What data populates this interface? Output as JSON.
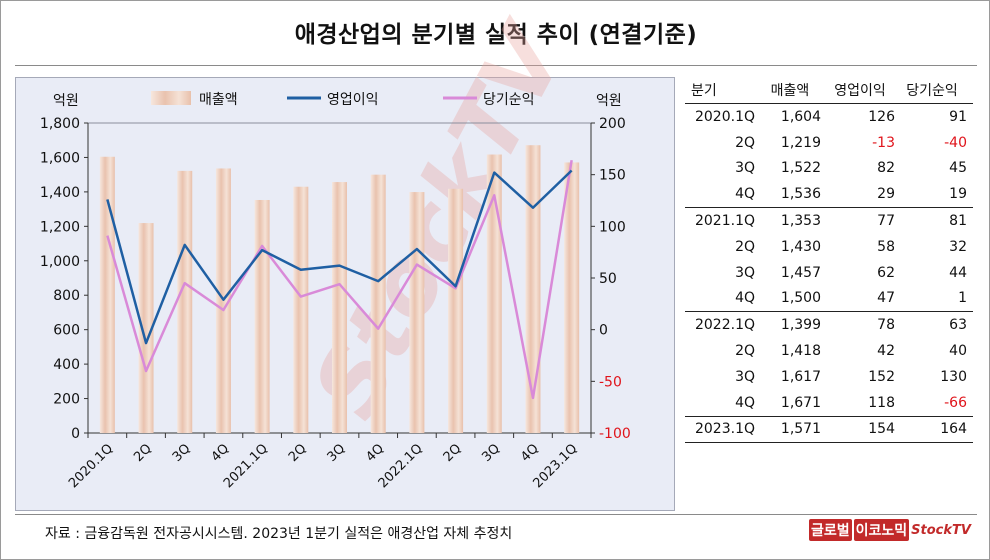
{
  "title": "애경산업의 분기별 실적 추이 (연결기준)",
  "source": "자료 : 금융감독원 전자공시시스템. 2023년 1분기 실적은 애경산업 자체 추정치",
  "logo": {
    "part1": "글로벌",
    "part2": "이코노믹",
    "part3": "StockTV"
  },
  "watermark": "StockTV",
  "colors": {
    "bar": "#f1d8c9",
    "operating": "#1f5fa3",
    "net": "#d98ad8",
    "negative": "#e0141b",
    "plot_bg": "#e9ecf6"
  },
  "chart_data": {
    "type": "bar+line",
    "title": "애경산업의 분기별 실적 추이 (연결기준)",
    "left_axis_unit": "억원",
    "right_axis_unit": "억원",
    "categories": [
      "2020.1Q",
      "2Q",
      "3Q",
      "4Q",
      "2021.1Q",
      "2Q",
      "3Q",
      "4Q",
      "2022.1Q",
      "2Q",
      "3Q",
      "4Q",
      "2023.1Q"
    ],
    "series": [
      {
        "name": "매출액",
        "type": "bar",
        "axis": "left",
        "values": [
          1604,
          1219,
          1522,
          1536,
          1353,
          1430,
          1457,
          1500,
          1399,
          1418,
          1617,
          1671,
          1571
        ]
      },
      {
        "name": "영업이익",
        "type": "line",
        "axis": "right",
        "values": [
          126,
          -13,
          82,
          29,
          77,
          58,
          62,
          47,
          78,
          42,
          152,
          118,
          154
        ]
      },
      {
        "name": "당기순익",
        "type": "line",
        "axis": "right",
        "values": [
          91,
          -40,
          45,
          19,
          81,
          32,
          44,
          1,
          63,
          40,
          130,
          -66,
          164
        ]
      }
    ],
    "left_ylim": [
      0,
      1800
    ],
    "left_ticks": [
      "0",
      "200",
      "400",
      "600",
      "800",
      "1,000",
      "1,200",
      "1,400",
      "1,600",
      "1,800"
    ],
    "right_ylim": [
      -100,
      200
    ],
    "right_ticks": [
      "-100",
      "-50",
      "0",
      "50",
      "100",
      "150",
      "200"
    ],
    "legend_placement": "top",
    "grid": false
  },
  "table": {
    "headers": [
      "분기",
      "매출액",
      "영업이익",
      "당기순익"
    ],
    "groups": [
      [
        [
          "2020.1Q",
          "1,604",
          "126",
          "91"
        ],
        [
          "2Q",
          "1,219",
          "-13",
          "-40"
        ],
        [
          "3Q",
          "1,522",
          "82",
          "45"
        ],
        [
          "4Q",
          "1,536",
          "29",
          "19"
        ]
      ],
      [
        [
          "2021.1Q",
          "1,353",
          "77",
          "81"
        ],
        [
          "2Q",
          "1,430",
          "58",
          "32"
        ],
        [
          "3Q",
          "1,457",
          "62",
          "44"
        ],
        [
          "4Q",
          "1,500",
          "47",
          "1"
        ]
      ],
      [
        [
          "2022.1Q",
          "1,399",
          "78",
          "63"
        ],
        [
          "2Q",
          "1,418",
          "42",
          "40"
        ],
        [
          "3Q",
          "1,617",
          "152",
          "130"
        ],
        [
          "4Q",
          "1,671",
          "118",
          "-66"
        ]
      ],
      [
        [
          "2023.1Q",
          "1,571",
          "154",
          "164"
        ]
      ]
    ]
  }
}
